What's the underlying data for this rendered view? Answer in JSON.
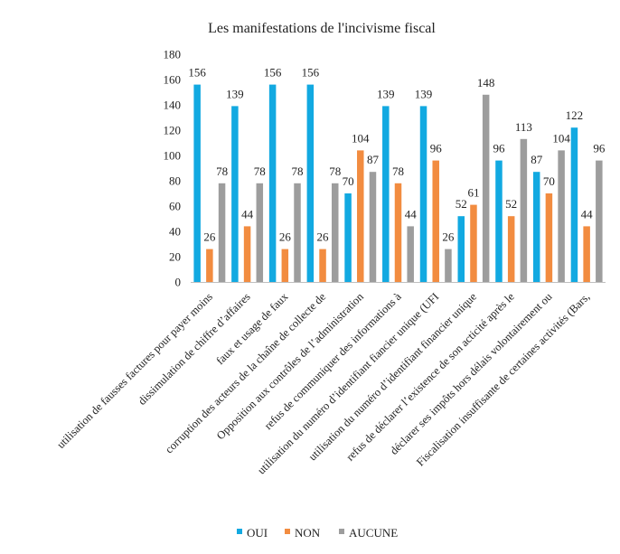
{
  "chart_data": {
    "type": "bar",
    "title": "Les manifestations de l'incivisme fiscal",
    "xlabel": "",
    "ylabel": "",
    "ylim": [
      0,
      180
    ],
    "yticks": [
      0,
      20,
      40,
      60,
      80,
      100,
      120,
      140,
      160,
      180
    ],
    "grid": false,
    "legend_position": "bottom",
    "categories": [
      "utilisation de fausses factures pour payer moins",
      "dissimulation de chiffre d’affaires",
      "faux et usage de faux",
      "corruption des acteurs de la chaîne de collecte de",
      "Opposition aux contrôles de l’administration",
      "refus de communiquer des informations à",
      "utilisation du numéro d’identifiant fiancier unique (UFI",
      "utilisation du numéro d’identifiant financier unique",
      "refus de déclarer l’existence de son acticité après le",
      "déclarer ses impôts hors délais volontairement ou",
      "Fiscalisation insuffisante de certaines activités (Bars,"
    ],
    "series": [
      {
        "name": "OUI",
        "color": "#12a9e1",
        "values": [
          156,
          139,
          156,
          156,
          70,
          139,
          139,
          52,
          96,
          87,
          122
        ]
      },
      {
        "name": "NON",
        "color": "#f28c40",
        "values": [
          26,
          44,
          26,
          26,
          104,
          78,
          96,
          61,
          52,
          70,
          44
        ]
      },
      {
        "name": "AUCUNE",
        "color": "#9d9d9d",
        "values": [
          78,
          78,
          78,
          78,
          87,
          44,
          26,
          148,
          113,
          104,
          96
        ]
      }
    ]
  }
}
